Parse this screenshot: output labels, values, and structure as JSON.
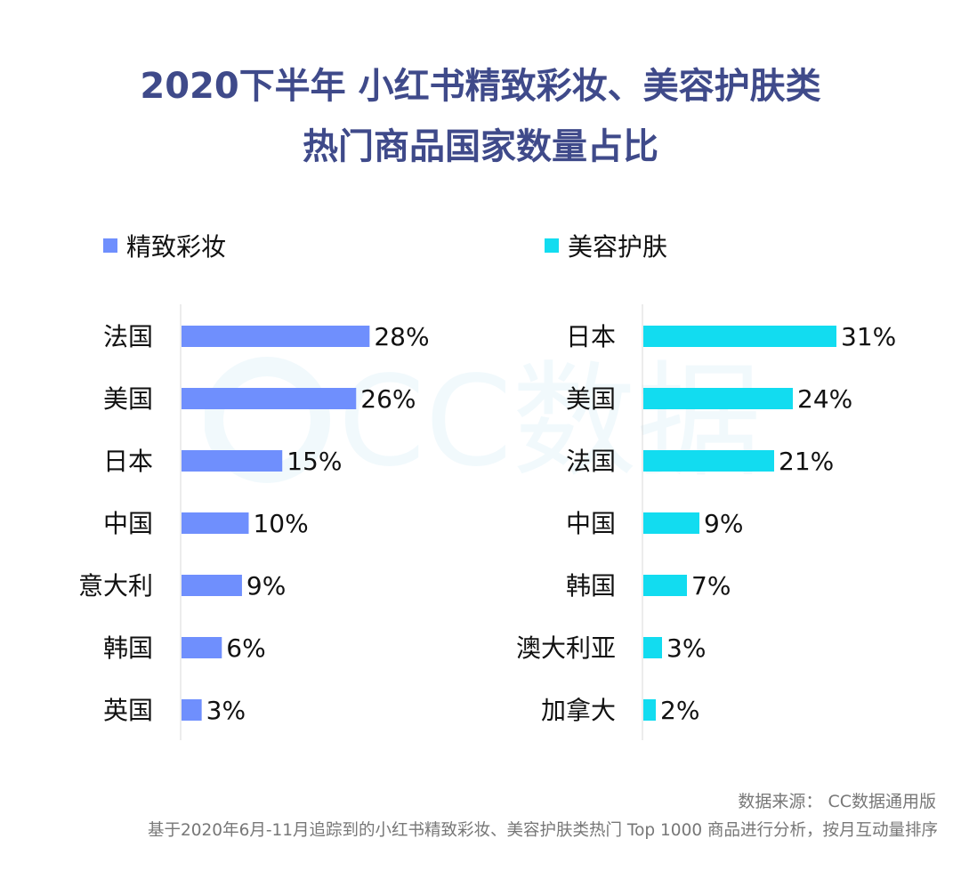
{
  "title": {
    "line1": "2020下半年 小红书精致彩妆、美容护肤类",
    "line2": "热门商品国家数量占比"
  },
  "colors": {
    "title": "#3f4a8a",
    "makeup": "#6f8ffd",
    "skincare": "#12dcf0"
  },
  "watermark": {
    "text": "CC数据"
  },
  "chart_data": [
    {
      "type": "bar",
      "orientation": "horizontal",
      "legend": "精致彩妆",
      "color": "#6f8ffd",
      "categories": [
        "法国",
        "美国",
        "日本",
        "中国",
        "意大利",
        "韩国",
        "英国"
      ],
      "values": [
        28,
        26,
        15,
        10,
        9,
        6,
        3
      ],
      "labels": [
        "28%",
        "26%",
        "15%",
        "10%",
        "9%",
        "6%",
        "3%"
      ],
      "unit": "%",
      "xlim": [
        0,
        31
      ]
    },
    {
      "type": "bar",
      "orientation": "horizontal",
      "legend": "美容护肤",
      "color": "#12dcf0",
      "categories": [
        "日本",
        "美国",
        "法国",
        "中国",
        "韩国",
        "澳大利亚",
        "加拿大"
      ],
      "values": [
        31,
        24,
        21,
        9,
        7,
        3,
        2
      ],
      "labels": [
        "31%",
        "24%",
        "21%",
        "9%",
        "7%",
        "3%",
        "2%"
      ],
      "unit": "%",
      "xlim": [
        0,
        31
      ]
    }
  ],
  "footer": {
    "source": "数据来源： CC数据通用版",
    "note": "基于2020年6月-11月追踪到的小红书精致彩妆、美容护肤类热门 Top 1000 商品进行分析，按月互动量排序"
  }
}
